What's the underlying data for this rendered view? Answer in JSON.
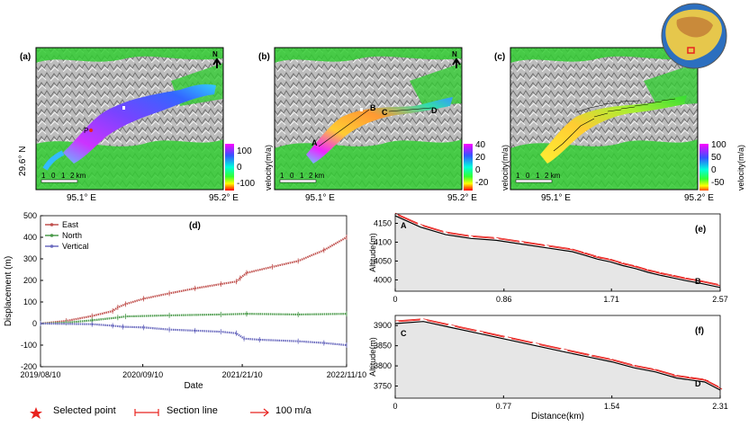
{
  "maps": {
    "a": {
      "panel_label": "(a)",
      "lat_label": "29.6° N",
      "x_tick_left": "95.1° E",
      "x_tick_right": "95.2° E",
      "north": "N",
      "scalebar": [
        "1",
        "0",
        "1",
        "2 km"
      ],
      "cbar_title": "velocity(m/a)",
      "cbar_ticks": [
        "100",
        "0",
        "-100"
      ],
      "point_label": "P"
    },
    "b": {
      "panel_label": "(b)",
      "x_tick_left": "95.1° E",
      "x_tick_right": "95.2° E",
      "north": "N",
      "scalebar": [
        "1",
        "0",
        "1",
        "2 km"
      ],
      "cbar_title": "velocity(m/a)",
      "cbar_ticks": [
        "40",
        "20",
        "0",
        "-20"
      ],
      "point_labels": [
        "A",
        "B",
        "C",
        "D"
      ]
    },
    "c": {
      "panel_label": "(c)",
      "x_tick_left": "95.1° E",
      "x_tick_right": "95.2° E",
      "scalebar": [
        "1",
        "0",
        "1",
        "2 km"
      ],
      "cbar_title": "velocity(m/a)",
      "cbar_ticks": [
        "100",
        "50",
        "0",
        "-50"
      ]
    }
  },
  "colors": {
    "east": "#c0504d",
    "north": "#4a9a4a",
    "vertical": "#6b6bbf",
    "section": "#e8231f",
    "terrain_fill": "#e6e6e6",
    "vegetation": "#33cc33"
  },
  "legend_bottom": {
    "selected_point": "Selected point",
    "section_line": "Section line",
    "arrow": "100 m/a"
  },
  "chart_data": [
    {
      "panel_label": "(d)",
      "type": "line",
      "xlabel": "Date",
      "ylabel": "Displacement (m)",
      "xticks": [
        "2019/08/10",
        "2020/09/10",
        "2021/21/10",
        "2022/11/10"
      ],
      "ylim": [
        -200,
        500
      ],
      "yticks": [
        -200,
        -100,
        0,
        100,
        200,
        300,
        400,
        500
      ],
      "x_range": [
        0,
        1188
      ],
      "xtick_days": [
        0,
        397,
        783,
        1188
      ],
      "series": [
        {
          "name": "East",
          "points": [
            [
              0,
              0
            ],
            [
              100,
              12
            ],
            [
              200,
              35
            ],
            [
              280,
              58
            ],
            [
              300,
              75
            ],
            [
              330,
              90
            ],
            [
              400,
              115
            ],
            [
              500,
              140
            ],
            [
              600,
              163
            ],
            [
              700,
              183
            ],
            [
              760,
              195
            ],
            [
              775,
              210
            ],
            [
              800,
              235
            ],
            [
              900,
              263
            ],
            [
              1000,
              290
            ],
            [
              1100,
              340
            ],
            [
              1188,
              400
            ]
          ]
        },
        {
          "name": "North",
          "points": [
            [
              0,
              0
            ],
            [
              100,
              4
            ],
            [
              200,
              15
            ],
            [
              300,
              28
            ],
            [
              330,
              33
            ],
            [
              500,
              38
            ],
            [
              700,
              42
            ],
            [
              800,
              45
            ],
            [
              1000,
              42
            ],
            [
              1188,
              45
            ]
          ]
        },
        {
          "name": "Vertical",
          "points": [
            [
              0,
              0
            ],
            [
              200,
              -3
            ],
            [
              280,
              -10
            ],
            [
              320,
              -15
            ],
            [
              400,
              -18
            ],
            [
              500,
              -28
            ],
            [
              600,
              -33
            ],
            [
              700,
              -38
            ],
            [
              760,
              -45
            ],
            [
              790,
              -70
            ],
            [
              850,
              -75
            ],
            [
              1000,
              -82
            ],
            [
              1100,
              -90
            ],
            [
              1188,
              -100
            ]
          ]
        }
      ]
    },
    {
      "panel_label": "(e)",
      "type": "line",
      "ylabel": "Altitude(m)",
      "xticks": [
        "0",
        "0.86",
        "1.71",
        "2.57"
      ],
      "xlim": [
        0,
        2.57
      ],
      "ylim": [
        3970,
        4175
      ],
      "yticks": [
        4000,
        4050,
        4100,
        4150
      ],
      "start_label": "A",
      "end_label": "B",
      "series": [
        {
          "name": "",
          "points": [
            [
              0,
              4170
            ],
            [
              0.2,
              4140
            ],
            [
              0.4,
              4120
            ],
            [
              0.6,
              4110
            ],
            [
              0.8,
              4105
            ],
            [
              1.0,
              4095
            ],
            [
              1.2,
              4085
            ],
            [
              1.4,
              4075
            ],
            [
              1.5,
              4065
            ],
            [
              1.6,
              4055
            ],
            [
              1.7,
              4048
            ],
            [
              1.8,
              4038
            ],
            [
              1.9,
              4030
            ],
            [
              2.0,
              4020
            ],
            [
              2.1,
              4012
            ],
            [
              2.2,
              4005
            ],
            [
              2.3,
              3998
            ],
            [
              2.4,
              3992
            ],
            [
              2.57,
              3980
            ]
          ]
        }
      ]
    },
    {
      "panel_label": "(f)",
      "type": "line",
      "ylabel": "Altitude(m)",
      "xlabel": "Distance(km)",
      "xticks": [
        "0",
        "0.77",
        "1.54",
        "2.31"
      ],
      "xlim": [
        0,
        2.31
      ],
      "ylim": [
        3720,
        3925
      ],
      "yticks": [
        3750,
        3800,
        3850,
        3900
      ],
      "start_label": "C",
      "end_label": "D",
      "series": [
        {
          "name": "",
          "points": [
            [
              0,
              3905
            ],
            [
              0.2,
              3910
            ],
            [
              0.4,
              3895
            ],
            [
              0.6,
              3880
            ],
            [
              0.8,
              3865
            ],
            [
              1.0,
              3850
            ],
            [
              1.2,
              3835
            ],
            [
              1.4,
              3820
            ],
            [
              1.54,
              3810
            ],
            [
              1.7,
              3795
            ],
            [
              1.85,
              3785
            ],
            [
              2.0,
              3770
            ],
            [
              2.1,
              3765
            ],
            [
              2.2,
              3760
            ],
            [
              2.31,
              3740
            ]
          ]
        }
      ]
    }
  ]
}
